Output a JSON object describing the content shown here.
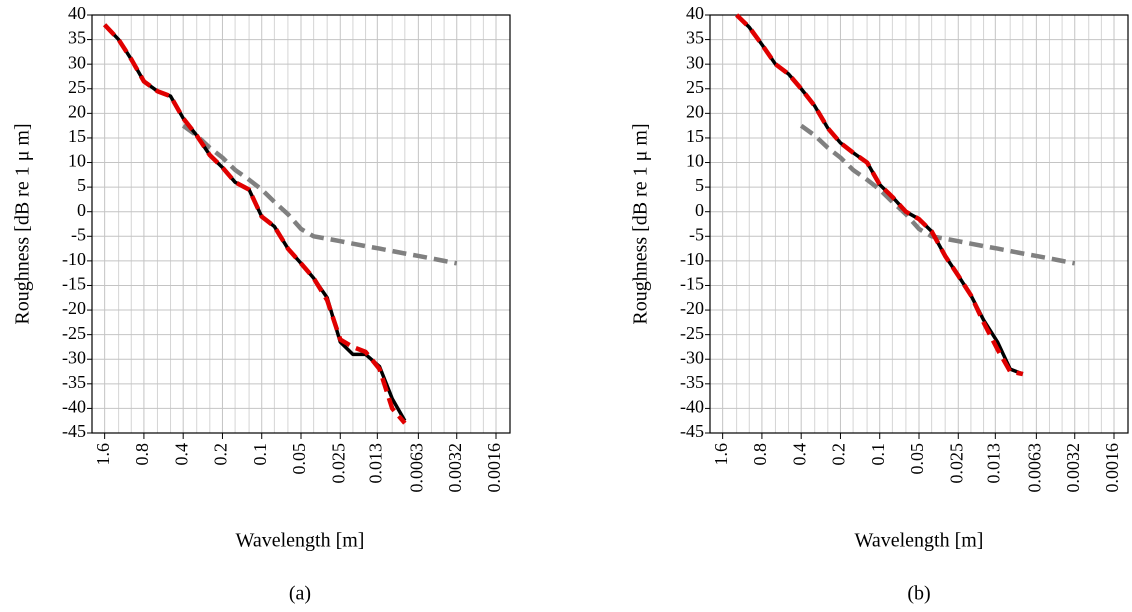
{
  "chart_data": [
    {
      "type": "line",
      "y_label": "Roughness [dB re 1 μ m]",
      "x_label": "Wavelength [m]",
      "caption": "(a)",
      "xscale": "log",
      "xlim": [
        2.0,
        0.00125
      ],
      "ylim": [
        -45,
        40
      ],
      "xticks": [
        1.6,
        0.8,
        0.4,
        0.2,
        0.1,
        0.05,
        0.025,
        0.013,
        0.0063,
        0.0032,
        0.0016
      ],
      "xminorticks": [
        1.25,
        1.0,
        0.63,
        0.5,
        0.315,
        0.25,
        0.16,
        0.125,
        0.08,
        0.063,
        0.04,
        0.0315,
        0.02,
        0.016,
        0.01,
        0.008,
        0.005,
        0.004,
        0.0025,
        0.002
      ],
      "yticks": [
        40,
        35,
        30,
        25,
        20,
        15,
        10,
        5,
        0,
        -5,
        -10,
        -15,
        -20,
        -25,
        -30,
        -35,
        -40,
        -45
      ],
      "grid": true,
      "series": [
        {
          "color": "#808080",
          "linestyle": "dashed",
          "x": [
            0.4,
            0.315,
            0.25,
            0.2,
            0.16,
            0.125,
            0.1,
            0.08,
            0.063,
            0.05,
            0.04,
            0.0315,
            0.025,
            0.02,
            0.016,
            0.0125,
            0.01,
            0.008,
            0.0063,
            0.005,
            0.004,
            0.0032
          ],
          "values": [
            17.5,
            15.5,
            13,
            11,
            8.5,
            6.5,
            4.5,
            2,
            -0.5,
            -3.5,
            -5,
            -5.5,
            -6,
            -6.5,
            -7,
            -7.5,
            -8,
            -8.5,
            -9,
            -9.5,
            -10,
            -10.5
          ]
        },
        {
          "color": "#000000",
          "linestyle": "solid",
          "x": [
            1.6,
            1.25,
            1.0,
            0.8,
            0.63,
            0.5,
            0.4,
            0.315,
            0.25,
            0.2,
            0.16,
            0.125,
            0.1,
            0.08,
            0.063,
            0.05,
            0.04,
            0.0315,
            0.025,
            0.02,
            0.016,
            0.0125,
            0.01,
            0.008
          ],
          "values": [
            38,
            35,
            31,
            26.5,
            24.5,
            23.5,
            19,
            15.5,
            11.5,
            9,
            6,
            4.5,
            -1,
            -3,
            -7.5,
            -10.5,
            -13.5,
            -17.5,
            -26.5,
            -29,
            -29,
            -31.5,
            -38,
            -42.5
          ]
        },
        {
          "color": "#e00000",
          "linestyle": "dashed",
          "x": [
            1.6,
            1.25,
            1.0,
            0.8,
            0.63,
            0.5,
            0.4,
            0.315,
            0.25,
            0.2,
            0.16,
            0.125,
            0.1,
            0.08,
            0.063,
            0.05,
            0.04,
            0.0315,
            0.025,
            0.02,
            0.016,
            0.0125,
            0.01,
            0.008
          ],
          "values": [
            38,
            35,
            31,
            26.5,
            24.5,
            23.5,
            19,
            15.5,
            11.5,
            9,
            6,
            4.5,
            -1,
            -3,
            -7.5,
            -10.5,
            -13.5,
            -18,
            -26,
            -27.5,
            -28.5,
            -32,
            -40,
            -43
          ]
        }
      ]
    },
    {
      "type": "line",
      "y_label": "Roughness [dB re 1 μ m]",
      "x_label": "Wavelength [m]",
      "caption": "(b)",
      "xscale": "log",
      "xlim": [
        2.0,
        0.00125
      ],
      "ylim": [
        -45,
        40
      ],
      "xticks": [
        1.6,
        0.8,
        0.4,
        0.2,
        0.1,
        0.05,
        0.025,
        0.013,
        0.0063,
        0.0032,
        0.0016
      ],
      "xminorticks": [
        1.25,
        1.0,
        0.63,
        0.5,
        0.315,
        0.25,
        0.16,
        0.125,
        0.08,
        0.063,
        0.04,
        0.0315,
        0.02,
        0.016,
        0.01,
        0.008,
        0.005,
        0.004,
        0.0025,
        0.002
      ],
      "yticks": [
        40,
        35,
        30,
        25,
        20,
        15,
        10,
        5,
        0,
        -5,
        -10,
        -15,
        -20,
        -25,
        -30,
        -35,
        -40,
        -45
      ],
      "grid": true,
      "series": [
        {
          "color": "#808080",
          "linestyle": "dashed",
          "x": [
            0.4,
            0.315,
            0.25,
            0.2,
            0.16,
            0.125,
            0.1,
            0.08,
            0.063,
            0.05,
            0.04,
            0.0315,
            0.025,
            0.02,
            0.016,
            0.0125,
            0.01,
            0.008,
            0.0063,
            0.005,
            0.004,
            0.0032
          ],
          "values": [
            17.5,
            15.5,
            13,
            11,
            8.5,
            6.5,
            4.5,
            2,
            -0.5,
            -3.5,
            -5,
            -5.5,
            -6,
            -6.5,
            -7,
            -7.5,
            -8,
            -8.5,
            -9,
            -9.5,
            -10,
            -10.5
          ]
        },
        {
          "color": "#000000",
          "linestyle": "solid",
          "x": [
            1.25,
            1.0,
            0.8,
            0.63,
            0.5,
            0.4,
            0.315,
            0.25,
            0.2,
            0.16,
            0.125,
            0.1,
            0.08,
            0.063,
            0.05,
            0.04,
            0.0315,
            0.025,
            0.02,
            0.016,
            0.0125,
            0.01,
            0.008
          ],
          "values": [
            40,
            37.5,
            34,
            30,
            28,
            25,
            21.5,
            17,
            14,
            12,
            10,
            5.5,
            3,
            0,
            -1.5,
            -4,
            -9,
            -13,
            -17,
            -22,
            -26.5,
            -32,
            -33
          ]
        },
        {
          "color": "#e00000",
          "linestyle": "dashed",
          "x": [
            1.25,
            1.0,
            0.8,
            0.63,
            0.5,
            0.4,
            0.315,
            0.25,
            0.2,
            0.16,
            0.125,
            0.1,
            0.08,
            0.063,
            0.05,
            0.04,
            0.0315,
            0.025,
            0.02,
            0.016,
            0.0125,
            0.01,
            0.008
          ],
          "values": [
            40,
            37.5,
            34,
            30,
            28,
            25,
            21.5,
            17,
            14,
            12,
            10,
            5.5,
            3,
            0,
            -1.5,
            -4,
            -9,
            -13,
            -17,
            -22.5,
            -28,
            -32.5,
            -33
          ]
        }
      ]
    }
  ]
}
